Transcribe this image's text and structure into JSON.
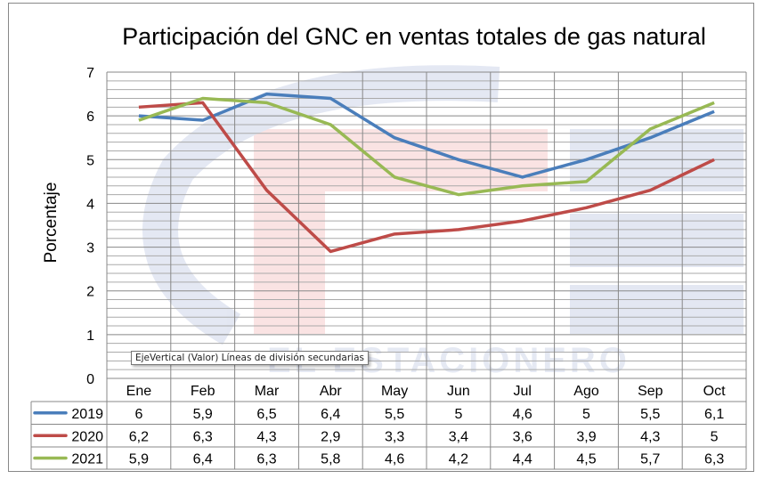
{
  "chart_data": {
    "type": "line",
    "title": "Participación del GNC en ventas totales de gas natural",
    "xlabel": "",
    "ylabel": "Porcentaje",
    "ylim": [
      0,
      7
    ],
    "yticks": [
      "0",
      "1",
      "2",
      "3",
      "4",
      "5",
      "6",
      "7"
    ],
    "grid": "major vertical, major and minor horizontal (0.2)",
    "legend": "data-table-left",
    "categories": [
      "Ene",
      "Feb",
      "Mar",
      "Abr",
      "May",
      "Jun",
      "Jul",
      "Ago",
      "Sep",
      "Oct"
    ],
    "series": [
      {
        "name": "2019",
        "color": "#4a7ebb",
        "values": [
          6,
          5.9,
          6.5,
          6.4,
          5.5,
          5,
          4.6,
          5,
          5.5,
          6.1
        ],
        "labels": [
          "6",
          "5,9",
          "6,5",
          "6,4",
          "5,5",
          "5",
          "4,6",
          "5",
          "5,5",
          "6,1"
        ]
      },
      {
        "name": "2020",
        "color": "#be4b48",
        "values": [
          6.2,
          6.3,
          4.3,
          2.9,
          3.3,
          3.4,
          3.6,
          3.9,
          4.3,
          5
        ],
        "labels": [
          "6,2",
          "6,3",
          "4,3",
          "2,9",
          "3,3",
          "3,4",
          "3,6",
          "3,9",
          "4,3",
          "5"
        ]
      },
      {
        "name": "2021",
        "color": "#98b954",
        "values": [
          5.9,
          6.4,
          6.3,
          5.8,
          4.6,
          4.2,
          4.4,
          4.5,
          5.7,
          6.3
        ],
        "labels": [
          "5,9",
          "6,4",
          "6,3",
          "5,8",
          "4,6",
          "4,2",
          "4,4",
          "4,5",
          "5,7",
          "6,3"
        ]
      }
    ]
  },
  "tooltip": "EjeVertical (Valor)  Líneas de división secundarias",
  "watermark": "EL ESTACIONERO"
}
